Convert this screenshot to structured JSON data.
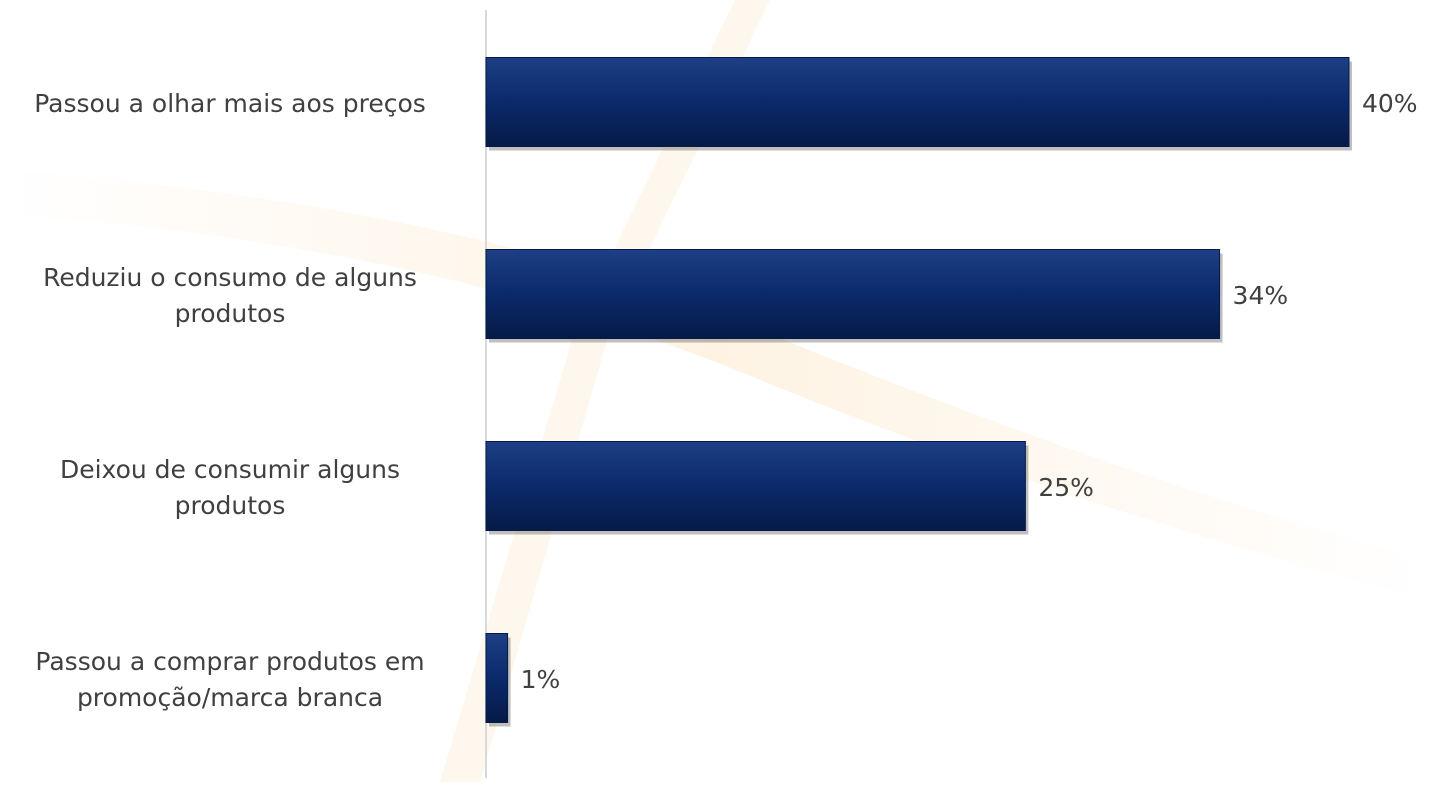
{
  "chart_data": {
    "type": "bar",
    "orientation": "horizontal",
    "categories": [
      [
        "Passou a olhar mais aos preços"
      ],
      [
        "Reduziu o consumo de alguns",
        "produtos"
      ],
      [
        "Deixou de consumir alguns",
        "produtos"
      ],
      [
        "Passou a comprar produtos em",
        "promoção/marca branca"
      ]
    ],
    "values": [
      40,
      34,
      25,
      1
    ],
    "value_labels": [
      "40%",
      "34%",
      "25%",
      "1%"
    ],
    "xlim": [
      0,
      40
    ],
    "title": "",
    "xlabel": "",
    "ylabel": "",
    "grid": false,
    "legend": "none",
    "colors": {
      "bar": "#0b2a6b",
      "bar_light": "#1e3f86",
      "bar_dark": "#061a47",
      "axis": "#d9d9d9",
      "text": "#404040",
      "watermark": "#fde9cc"
    }
  }
}
